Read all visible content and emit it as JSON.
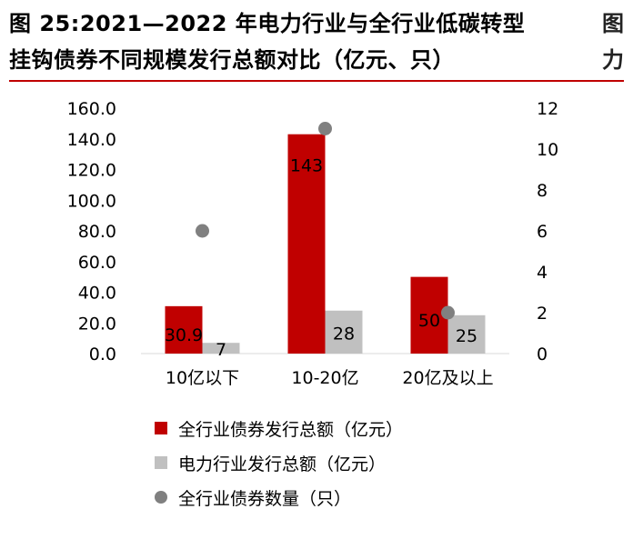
{
  "title": {
    "line1": "图 25:2021—2022 年电力行业与全行业低碳转型",
    "line2": "挂钩债券不同规模发行总额对比（亿元、只）"
  },
  "clipped_neighbor": {
    "line1": "图",
    "line2": "力"
  },
  "colors": {
    "accent": "#c00000",
    "gray": "#c0c0c0",
    "dot": "#808080"
  },
  "chart_data": {
    "type": "bar",
    "categories": [
      "10亿以下",
      "10-20亿",
      "20亿及以上"
    ],
    "series": [
      {
        "name": "全行业债券发行总额（亿元）",
        "values": [
          30.9,
          143,
          50
        ],
        "labels": [
          "30.9",
          "143",
          "50"
        ],
        "axis": "left",
        "color": "#c00000"
      },
      {
        "name": "电力行业发行总额（亿元）",
        "values": [
          7,
          28,
          25
        ],
        "labels": [
          "7",
          "28",
          "25"
        ],
        "axis": "left",
        "color": "#c0c0c0"
      },
      {
        "name": "全行业债券数量（只）",
        "values": [
          6,
          11,
          2
        ],
        "axis": "right",
        "type": "scatter",
        "color": "#808080"
      }
    ],
    "y_left": {
      "range": [
        0,
        160
      ],
      "ticks": [
        "0.0",
        "20.0",
        "40.0",
        "60.0",
        "80.0",
        "100.0",
        "120.0",
        "140.0",
        "160.0"
      ]
    },
    "y_right": {
      "range": [
        0,
        12
      ],
      "ticks": [
        "0",
        "2",
        "4",
        "6",
        "8",
        "10",
        "12"
      ]
    },
    "grid": false,
    "legend_position": "bottom"
  }
}
